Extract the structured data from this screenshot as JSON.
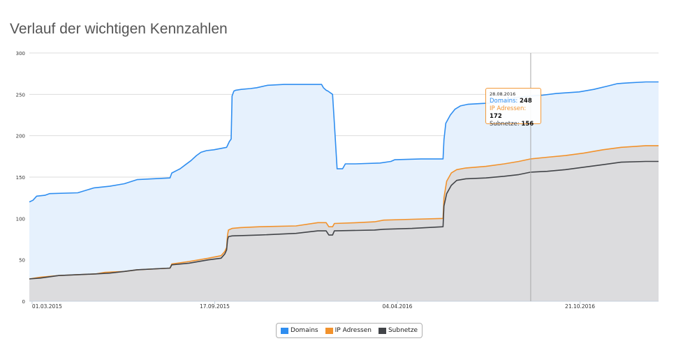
{
  "title": "Verlauf der wichtigen Kennzahlen",
  "colors": {
    "domains": "#2f8ef0",
    "ip": "#f2922c",
    "subnets": "#424448",
    "domains_fill": "#e6f1fd",
    "gray_fill": "#dcdcde",
    "grid": "#dddddd"
  },
  "chart_data": {
    "type": "area",
    "title": "Verlauf der wichtigen Kennzahlen",
    "xlabel": "",
    "ylabel": "",
    "x_ticks": [
      "01.03.2015",
      "17.09.2015",
      "04.04.2016",
      "21.10.2016"
    ],
    "y_ticks": [
      "0",
      "50",
      "100",
      "150",
      "200",
      "250",
      "300"
    ],
    "ylim": [
      0,
      300
    ],
    "xlim": [
      "2015-02-26",
      "2017-01-15"
    ],
    "grid": true,
    "legend_position": "bottom-center",
    "series": [
      {
        "name": "Domains",
        "color": "#2f8ef0",
        "points": [
          [
            "2015-02-26",
            120
          ],
          [
            "2015-03-02",
            122
          ],
          [
            "2015-03-06",
            127
          ],
          [
            "2015-03-15",
            128
          ],
          [
            "2015-03-20",
            130
          ],
          [
            "2015-04-20",
            131
          ],
          [
            "2015-05-08",
            137
          ],
          [
            "2015-05-25",
            139
          ],
          [
            "2015-06-10",
            142
          ],
          [
            "2015-06-24",
            147
          ],
          [
            "2015-07-30",
            149
          ],
          [
            "2015-08-01",
            155
          ],
          [
            "2015-08-10",
            160
          ],
          [
            "2015-08-16",
            165
          ],
          [
            "2015-08-22",
            170
          ],
          [
            "2015-08-28",
            176
          ],
          [
            "2015-09-02",
            180
          ],
          [
            "2015-09-08",
            182
          ],
          [
            "2015-09-16",
            183
          ],
          [
            "2015-09-30",
            186
          ],
          [
            "2015-10-03",
            193
          ],
          [
            "2015-10-05",
            196
          ],
          [
            "2015-10-06",
            248
          ],
          [
            "2015-10-08",
            254
          ],
          [
            "2015-10-10",
            255
          ],
          [
            "2015-10-16",
            256
          ],
          [
            "2015-10-26",
            257
          ],
          [
            "2015-11-02",
            258
          ],
          [
            "2015-11-14",
            261
          ],
          [
            "2015-12-02",
            262
          ],
          [
            "2016-01-12",
            262
          ],
          [
            "2016-01-14",
            258
          ],
          [
            "2016-01-17",
            255
          ],
          [
            "2016-01-19",
            254
          ],
          [
            "2016-01-24",
            250
          ],
          [
            "2016-01-26",
            215
          ],
          [
            "2016-01-29",
            160
          ],
          [
            "2016-02-04",
            160
          ],
          [
            "2016-02-07",
            166
          ],
          [
            "2016-02-18",
            166
          ],
          [
            "2016-03-16",
            167
          ],
          [
            "2016-03-28",
            169
          ],
          [
            "2016-04-01",
            171
          ],
          [
            "2016-04-30",
            172
          ],
          [
            "2016-05-24",
            172
          ],
          [
            "2016-05-25",
            195
          ],
          [
            "2016-05-27",
            215
          ],
          [
            "2016-06-01",
            225
          ],
          [
            "2016-06-06",
            232
          ],
          [
            "2016-06-12",
            236
          ],
          [
            "2016-06-20",
            238
          ],
          [
            "2016-07-05",
            239
          ],
          [
            "2016-07-25",
            240
          ],
          [
            "2016-08-10",
            246
          ],
          [
            "2016-08-28",
            248
          ],
          [
            "2016-09-10",
            249
          ],
          [
            "2016-09-25",
            251
          ],
          [
            "2016-10-20",
            253
          ],
          [
            "2016-11-05",
            256
          ],
          [
            "2016-11-20",
            260
          ],
          [
            "2016-12-01",
            263
          ],
          [
            "2016-12-15",
            264
          ],
          [
            "2017-01-01",
            265
          ],
          [
            "2017-01-15",
            265
          ]
        ]
      },
      {
        "name": "IP Adressen",
        "color": "#f2922c",
        "points": [
          [
            "2015-02-26",
            27
          ],
          [
            "2015-03-10",
            29
          ],
          [
            "2015-03-30",
            31
          ],
          [
            "2015-05-10",
            33
          ],
          [
            "2015-05-20",
            35
          ],
          [
            "2015-06-10",
            36
          ],
          [
            "2015-06-24",
            38
          ],
          [
            "2015-07-30",
            40
          ],
          [
            "2015-08-01",
            45
          ],
          [
            "2015-08-20",
            48
          ],
          [
            "2015-09-10",
            52
          ],
          [
            "2015-09-24",
            55
          ],
          [
            "2015-09-28",
            60
          ],
          [
            "2015-09-30",
            65
          ],
          [
            "2015-10-01",
            80
          ],
          [
            "2015-10-02",
            86
          ],
          [
            "2015-10-06",
            88
          ],
          [
            "2015-10-15",
            89
          ],
          [
            "2015-11-05",
            90
          ],
          [
            "2015-12-15",
            91
          ],
          [
            "2016-01-08",
            95
          ],
          [
            "2016-01-17",
            95
          ],
          [
            "2016-01-20",
            90
          ],
          [
            "2016-01-24",
            90
          ],
          [
            "2016-01-26",
            94
          ],
          [
            "2016-02-20",
            95
          ],
          [
            "2016-03-10",
            96
          ],
          [
            "2016-03-20",
            98
          ],
          [
            "2016-04-20",
            99
          ],
          [
            "2016-05-24",
            100
          ],
          [
            "2016-05-25",
            125
          ],
          [
            "2016-05-28",
            145
          ],
          [
            "2016-06-02",
            155
          ],
          [
            "2016-06-08",
            159
          ],
          [
            "2016-06-18",
            161
          ],
          [
            "2016-07-10",
            163
          ],
          [
            "2016-07-30",
            166
          ],
          [
            "2016-08-15",
            169
          ],
          [
            "2016-08-28",
            172
          ],
          [
            "2016-09-15",
            174
          ],
          [
            "2016-10-05",
            176
          ],
          [
            "2016-10-25",
            179
          ],
          [
            "2016-11-15",
            183
          ],
          [
            "2016-12-05",
            186
          ],
          [
            "2017-01-01",
            188
          ],
          [
            "2017-01-15",
            188
          ]
        ]
      },
      {
        "name": "Subnetze",
        "color": "#424448",
        "points": [
          [
            "2015-02-26",
            27
          ],
          [
            "2015-03-10",
            28
          ],
          [
            "2015-03-30",
            31
          ],
          [
            "2015-05-10",
            33
          ],
          [
            "2015-05-25",
            34
          ],
          [
            "2015-06-10",
            36
          ],
          [
            "2015-06-24",
            38
          ],
          [
            "2015-07-30",
            40
          ],
          [
            "2015-08-01",
            44
          ],
          [
            "2015-08-20",
            46
          ],
          [
            "2015-09-10",
            50
          ],
          [
            "2015-09-24",
            52
          ],
          [
            "2015-09-28",
            57
          ],
          [
            "2015-09-30",
            62
          ],
          [
            "2015-10-01",
            74
          ],
          [
            "2015-10-02",
            78
          ],
          [
            "2015-10-06",
            79
          ],
          [
            "2015-11-05",
            80
          ],
          [
            "2015-12-15",
            82
          ],
          [
            "2016-01-08",
            85
          ],
          [
            "2016-01-17",
            85
          ],
          [
            "2016-01-20",
            80
          ],
          [
            "2016-01-24",
            80
          ],
          [
            "2016-01-26",
            85
          ],
          [
            "2016-03-10",
            86
          ],
          [
            "2016-03-20",
            87
          ],
          [
            "2016-04-20",
            88
          ],
          [
            "2016-05-24",
            90
          ],
          [
            "2016-05-25",
            115
          ],
          [
            "2016-05-28",
            130
          ],
          [
            "2016-06-02",
            140
          ],
          [
            "2016-06-08",
            146
          ],
          [
            "2016-06-18",
            148
          ],
          [
            "2016-07-10",
            149
          ],
          [
            "2016-07-30",
            151
          ],
          [
            "2016-08-15",
            153
          ],
          [
            "2016-08-28",
            156
          ],
          [
            "2016-09-15",
            157
          ],
          [
            "2016-10-05",
            159
          ],
          [
            "2016-10-25",
            162
          ],
          [
            "2016-11-15",
            165
          ],
          [
            "2016-12-05",
            168
          ],
          [
            "2017-01-01",
            169
          ],
          [
            "2017-01-15",
            169
          ]
        ]
      }
    ],
    "tooltip": {
      "date": "28.08.2016",
      "values": [
        {
          "label": "Domains",
          "value": "248"
        },
        {
          "label": "IP Adressen",
          "value": "172"
        },
        {
          "label": "Subnetze",
          "value": "156"
        }
      ]
    }
  },
  "legend": [
    {
      "label": "Domains",
      "color": "#2f8ef0"
    },
    {
      "label": "IP Adressen",
      "color": "#f2922c"
    },
    {
      "label": "Subnetze",
      "color": "#424448"
    }
  ]
}
